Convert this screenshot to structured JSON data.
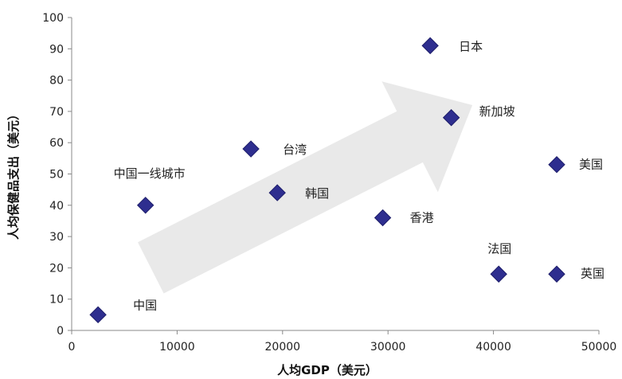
{
  "chart_data": {
    "type": "scatter",
    "xlabel": "人均GDP（美元）",
    "ylabel": "人均保健品支出（美元）",
    "xlim": [
      0,
      50000
    ],
    "ylim": [
      0,
      100
    ],
    "x_ticks": [
      "0",
      "10000",
      "20000",
      "30000",
      "40000",
      "50000"
    ],
    "y_ticks": [
      "0",
      "10",
      "20",
      "30",
      "40",
      "50",
      "60",
      "70",
      "80",
      "90",
      "100"
    ],
    "grid": false,
    "points": [
      {
        "label": "中国",
        "x": 2500,
        "y": 5
      },
      {
        "label": "中国一线城市",
        "x": 7000,
        "y": 40
      },
      {
        "label": "台湾",
        "x": 17000,
        "y": 58
      },
      {
        "label": "韩国",
        "x": 19500,
        "y": 44
      },
      {
        "label": "香港",
        "x": 29500,
        "y": 36
      },
      {
        "label": "日本",
        "x": 34000,
        "y": 91
      },
      {
        "label": "新加坡",
        "x": 36000,
        "y": 68
      },
      {
        "label": "法国",
        "x": 40500,
        "y": 18
      },
      {
        "label": "美国",
        "x": 46000,
        "y": 53
      },
      {
        "label": "英国",
        "x": 46000,
        "y": 18
      }
    ],
    "marker_color": "#2e2e8f",
    "trend_arrow": {
      "from": [
        7500,
        20
      ],
      "to": [
        38000,
        72
      ],
      "color": "#e9e9e9"
    }
  }
}
